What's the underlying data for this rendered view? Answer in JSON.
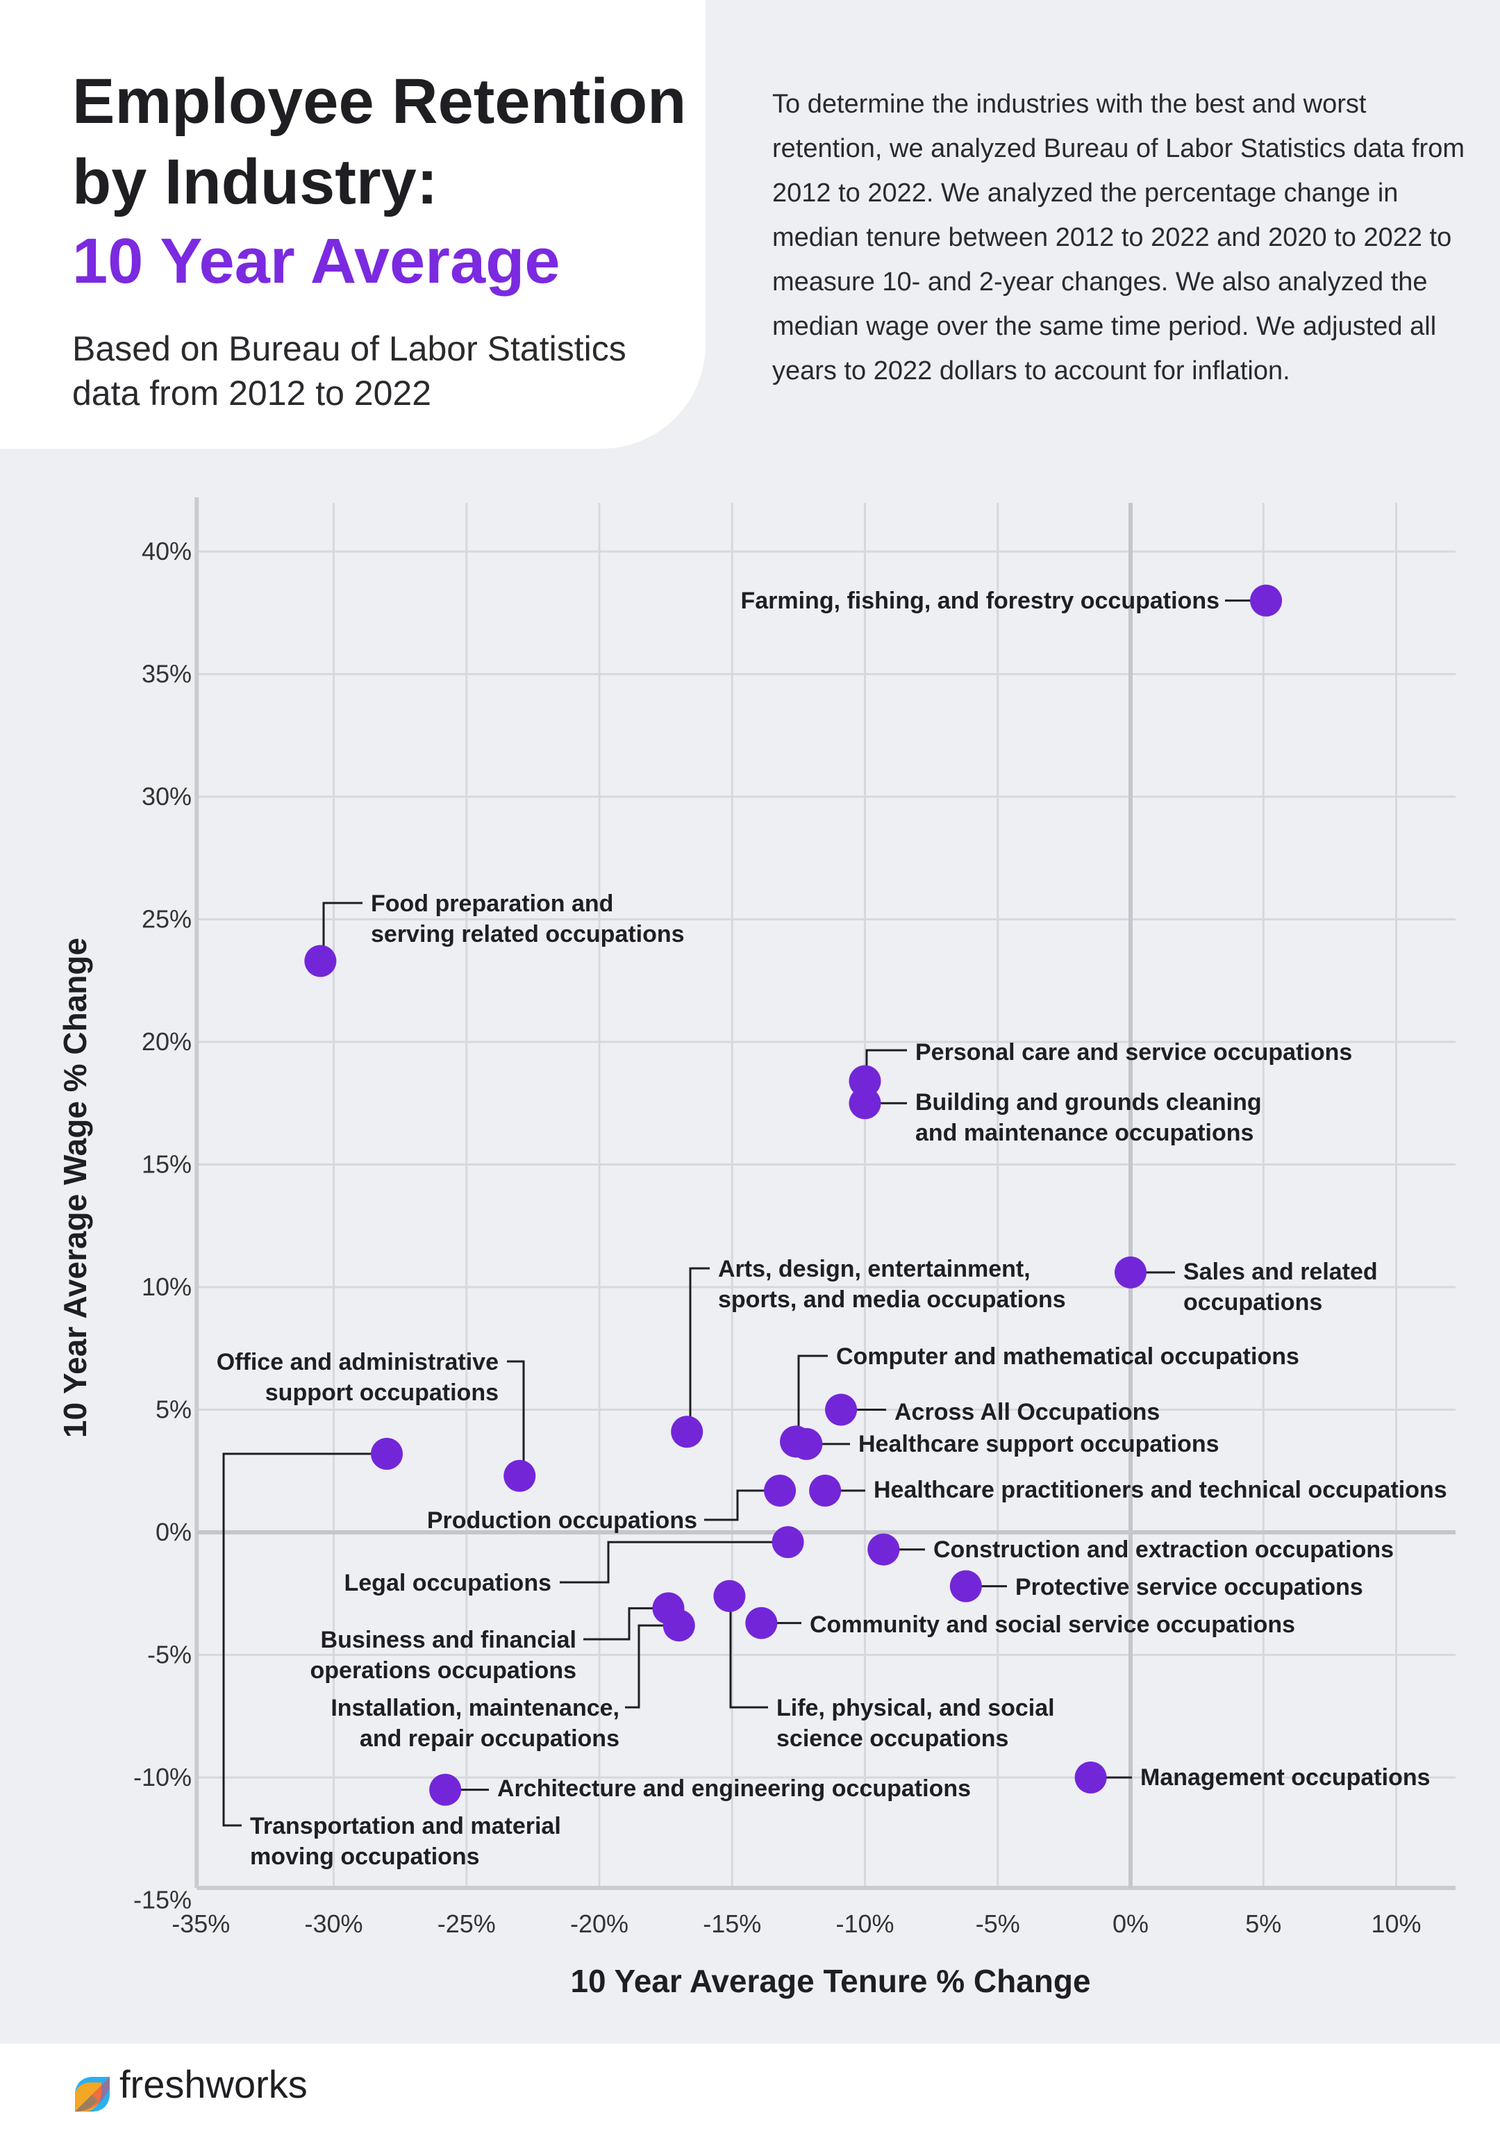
{
  "header": {
    "title_line1": "Employee Retention",
    "title_line2": "by Industry:",
    "title_line3": "10 Year Average",
    "subtitle_line1": "Based on Bureau of Labor Statistics",
    "subtitle_line2": "data from 2012 to 2022",
    "intro": "To determine the industries with the best and worst retention, we analyzed Bureau of Labor Statistics data from 2012 to 2022. We analyzed the percentage change in median tenure between 2012 to 2022 and 2020 to 2022 to measure 10- and 2-year changes.  We also analyzed the median wage over the same time period. We adjusted all years to 2022 dollars to account for inflation."
  },
  "colors": {
    "accent": "#7b2ae0",
    "dot": "#7326d8",
    "text": "#1f1f23",
    "grid": "#d6d8dd",
    "background": "#edeff3"
  },
  "footer": {
    "brand": "freshworks",
    "icon": "freshworks-logo-icon"
  },
  "chart_data": {
    "type": "scatter",
    "xlabel": "10 Year Average Tenure % Change",
    "ylabel": "10 Year Average Wage % Change",
    "xlim": [
      -35,
      12
    ],
    "ylim": [
      -15,
      42
    ],
    "grid": true,
    "xticks": [
      -35,
      -30,
      -25,
      -20,
      -15,
      -10,
      -5,
      0,
      5,
      10
    ],
    "yticks": [
      -15,
      -10,
      -5,
      0,
      5,
      10,
      15,
      20,
      25,
      30,
      35,
      40
    ],
    "xtick_labels": [
      "-35%",
      "-30%",
      "-25%",
      "-20%",
      "-15%",
      "-10%",
      "-5%",
      "0%",
      "5%",
      "10%"
    ],
    "ytick_labels": [
      "-15%",
      "-10%",
      "-5%",
      "0%",
      "5%",
      "10%",
      "15%",
      "20%",
      "25%",
      "30%",
      "35%",
      "40%"
    ],
    "points": [
      {
        "x": 5.1,
        "y": 38,
        "label": [
          "Farming, fishing, and forestry occupations"
        ]
      },
      {
        "x": -30.5,
        "y": 23.3,
        "label": [
          "Food preparation and",
          "serving related occupations"
        ]
      },
      {
        "x": -10,
        "y": 18.4,
        "label": [
          "Personal care and service occupations"
        ]
      },
      {
        "x": -10,
        "y": 17.5,
        "label": [
          "Building and grounds cleaning",
          "and maintenance occupations"
        ]
      },
      {
        "x": 0,
        "y": 10.6,
        "label": [
          "Sales and related",
          "occupations"
        ]
      },
      {
        "x": -16.7,
        "y": 4.1,
        "label": [
          "Arts, design, entertainment,",
          "sports, and media occupations"
        ]
      },
      {
        "x": -28,
        "y": 3.2,
        "label": [
          "Transportation and material",
          "moving occupations"
        ]
      },
      {
        "x": -23,
        "y": 2.3,
        "label": [
          "Office and administrative",
          "support occupations"
        ]
      },
      {
        "x": -12.6,
        "y": 3.7,
        "label": [
          "Computer and mathematical occupations"
        ]
      },
      {
        "x": -10.9,
        "y": 5,
        "label": [
          "Across All Occupations"
        ]
      },
      {
        "x": -12.2,
        "y": 3.6,
        "label": [
          "Healthcare support occupations"
        ]
      },
      {
        "x": -11.5,
        "y": 1.7,
        "label": [
          "Healthcare practitioners and technical occupations"
        ]
      },
      {
        "x": -13.2,
        "y": 1.7,
        "label": [
          "Production occupations"
        ]
      },
      {
        "x": -12.9,
        "y": -0.4,
        "label": [
          "Legal occupations"
        ]
      },
      {
        "x": -9.3,
        "y": -0.7,
        "label": [
          "Construction and extraction occupations"
        ]
      },
      {
        "x": -6.2,
        "y": -2.2,
        "label": [
          "Protective service occupations"
        ]
      },
      {
        "x": -15.1,
        "y": -2.6,
        "label": [
          "Life, physical, and social",
          "science occupations"
        ]
      },
      {
        "x": -17.4,
        "y": -3.1,
        "label": [
          "Business and financial",
          "operations occupations"
        ]
      },
      {
        "x": -17,
        "y": -3.8,
        "label": [
          "Installation, maintenance,",
          "and repair occupations"
        ]
      },
      {
        "x": -13.9,
        "y": -3.7,
        "label": [
          "Community and social service occupations"
        ]
      },
      {
        "x": -25.8,
        "y": -10.5,
        "label": [
          "Architecture and engineering occupations"
        ]
      },
      {
        "x": -1.5,
        "y": -10,
        "label": [
          "Management occupations"
        ]
      }
    ]
  }
}
